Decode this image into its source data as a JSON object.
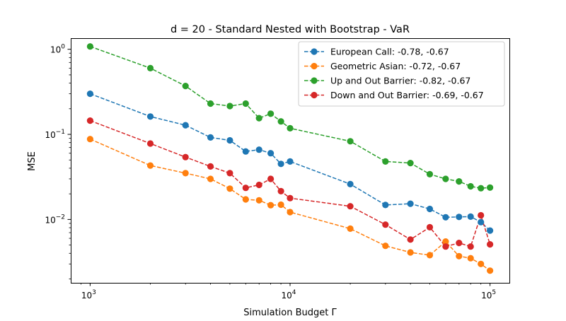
{
  "chart_data": {
    "type": "line",
    "title": "d = 20 - Standard Nested with Bootstrap - VaR",
    "xlabel": "Simulation Budget Γ",
    "ylabel": "MSE",
    "xscale": "log",
    "yscale": "log",
    "xlim": [
      800,
      125000
    ],
    "ylim": [
      0.0018,
      1.35
    ],
    "grid": false,
    "legend_position": "top-right",
    "x": [
      1000,
      2000,
      3000,
      4000,
      5000,
      6000,
      7000,
      8000,
      9000,
      10000,
      20000,
      30000,
      40000,
      50000,
      60000,
      70000,
      80000,
      90000,
      100000
    ],
    "x_ticks": [
      {
        "base": "10",
        "exp": "3",
        "value": 1000
      },
      {
        "base": "10",
        "exp": "4",
        "value": 10000
      },
      {
        "base": "10",
        "exp": "5",
        "value": 100000
      }
    ],
    "y_ticks": [
      {
        "base": "10",
        "exp": "0",
        "value": 1
      },
      {
        "base": "10",
        "exp": "−1",
        "value": 0.1
      },
      {
        "base": "10",
        "exp": "−2",
        "value": 0.01
      }
    ],
    "series": [
      {
        "name": "European Call: -0.78, -0.67",
        "color": "#1f77b4",
        "values": [
          0.3,
          0.162,
          0.128,
          0.092,
          0.085,
          0.063,
          0.066,
          0.06,
          0.045,
          0.048,
          0.026,
          0.0148,
          0.0153,
          0.0133,
          0.0106,
          0.0107,
          0.0108,
          0.0093,
          0.0074
        ]
      },
      {
        "name": "Geometric Asian: -0.72, -0.67",
        "color": "#ff7f0e",
        "values": [
          0.088,
          0.043,
          0.035,
          0.03,
          0.023,
          0.0172,
          0.0168,
          0.0147,
          0.0149,
          0.0122,
          0.0078,
          0.0049,
          0.0041,
          0.0038,
          0.0055,
          0.0037,
          0.0035,
          0.003,
          0.0025
        ]
      },
      {
        "name": "Up and Out Barrier: -0.82, -0.67",
        "color": "#2ca02c",
        "values": [
          1.08,
          0.6,
          0.37,
          0.23,
          0.215,
          0.23,
          0.155,
          0.175,
          0.142,
          0.118,
          0.083,
          0.048,
          0.046,
          0.034,
          0.03,
          0.028,
          0.0245,
          0.0233,
          0.0237
        ]
      },
      {
        "name": "Down and Out Barrier: -0.69, -0.67",
        "color": "#d62728",
        "values": [
          0.145,
          0.078,
          0.054,
          0.042,
          0.035,
          0.0235,
          0.0255,
          0.03,
          0.0215,
          0.0178,
          0.0143,
          0.0087,
          0.0058,
          0.0081,
          0.0048,
          0.0053,
          0.0048,
          0.0112,
          0.0051
        ]
      }
    ]
  }
}
